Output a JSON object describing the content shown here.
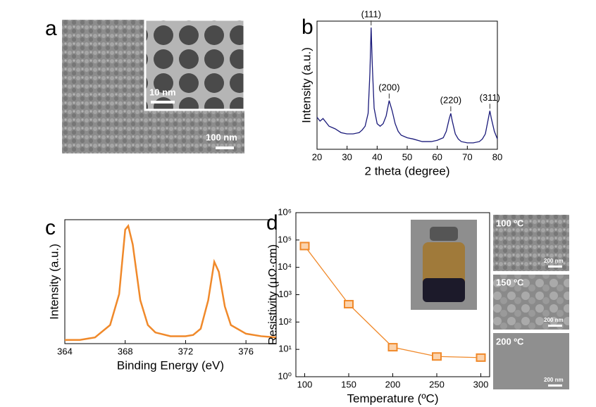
{
  "images": [
    {
      "label": "a",
      "scale": "100 nm",
      "inset_scale": "10 nm"
    },
    {
      "label": "100 ºC",
      "scale": "200 nm"
    },
    {
      "label": "150 ºC",
      "scale": "200 nm"
    },
    {
      "label": "200 ºC",
      "scale": "200 nm"
    }
  ],
  "chart_data": [
    {
      "type": "line",
      "label": "b",
      "xlabel": "2 theta (degree)",
      "ylabel": "Intensity (a.u.)",
      "color": "#1a1a7a",
      "x": [
        20,
        21,
        22,
        24,
        26,
        28,
        30,
        32,
        34,
        35,
        36,
        37,
        37.6,
        38,
        38.4,
        39,
        40,
        41,
        42,
        43,
        44,
        45,
        46,
        47,
        48,
        50,
        52,
        55,
        58,
        60,
        62,
        63,
        64,
        64.5,
        65,
        66,
        67,
        68,
        70,
        72,
        74,
        75,
        76,
        77,
        77.5,
        78,
        79,
        80
      ],
      "values": [
        25,
        22,
        24,
        18,
        16,
        13,
        12,
        12,
        13,
        15,
        18,
        28,
        60,
        95,
        65,
        32,
        20,
        18,
        20,
        26,
        38,
        30,
        20,
        14,
        11,
        9,
        8,
        6,
        6,
        7,
        9,
        14,
        24,
        28,
        22,
        12,
        8,
        6,
        5,
        5,
        6,
        8,
        12,
        24,
        30,
        24,
        14,
        8
      ],
      "xlim": [
        20,
        80
      ],
      "xticks": [
        20,
        30,
        40,
        50,
        60,
        70,
        80
      ],
      "ylim": [
        0,
        100
      ],
      "annotations": [
        {
          "text": "(111)",
          "x": 38
        },
        {
          "text": "(200)",
          "x": 44
        },
        {
          "text": "(220)",
          "x": 64.5
        },
        {
          "text": "(311)",
          "x": 77.5
        }
      ]
    },
    {
      "type": "line",
      "label": "c",
      "xlabel": "Binding Energy (eV)",
      "ylabel": "Intensity (a.u.)",
      "color": "#f0892a",
      "x": [
        364,
        365,
        366,
        367,
        367.6,
        368,
        368.2,
        368.5,
        369,
        369.5,
        370,
        371,
        372,
        372.5,
        373,
        373.5,
        373.9,
        374.2,
        374.6,
        375,
        376,
        377,
        378
      ],
      "values": [
        3,
        3,
        5,
        15,
        40,
        92,
        95,
        80,
        35,
        15,
        9,
        6,
        6,
        7,
        12,
        35,
        66,
        58,
        30,
        15,
        8,
        6,
        5
      ],
      "xlim": [
        364,
        378
      ],
      "xticks": [
        364,
        368,
        372,
        376
      ],
      "ylim": [
        0,
        100
      ]
    },
    {
      "type": "line",
      "label": "d",
      "xlabel": "Temperature (ºC)",
      "ylabel": "Resistivity (μΩ·cm)",
      "color": "#f0892a",
      "marker": "square",
      "log_y": true,
      "x": [
        100,
        150,
        200,
        250,
        300
      ],
      "values": [
        60000,
        450,
        12,
        5.5,
        5
      ],
      "xlim": [
        90,
        310
      ],
      "xticks": [
        100,
        150,
        200,
        250,
        300
      ],
      "ylim": [
        1,
        1000000
      ],
      "yticks": [
        {
          "value": 1,
          "label": "10⁰"
        },
        {
          "value": 10,
          "label": "10¹"
        },
        {
          "value": 100,
          "label": "10²"
        },
        {
          "value": 1000,
          "label": "10³"
        },
        {
          "value": 10000,
          "label": "10⁴"
        },
        {
          "value": 100000,
          "label": "10⁵"
        },
        {
          "value": 1000000,
          "label": "10⁶"
        }
      ]
    }
  ]
}
